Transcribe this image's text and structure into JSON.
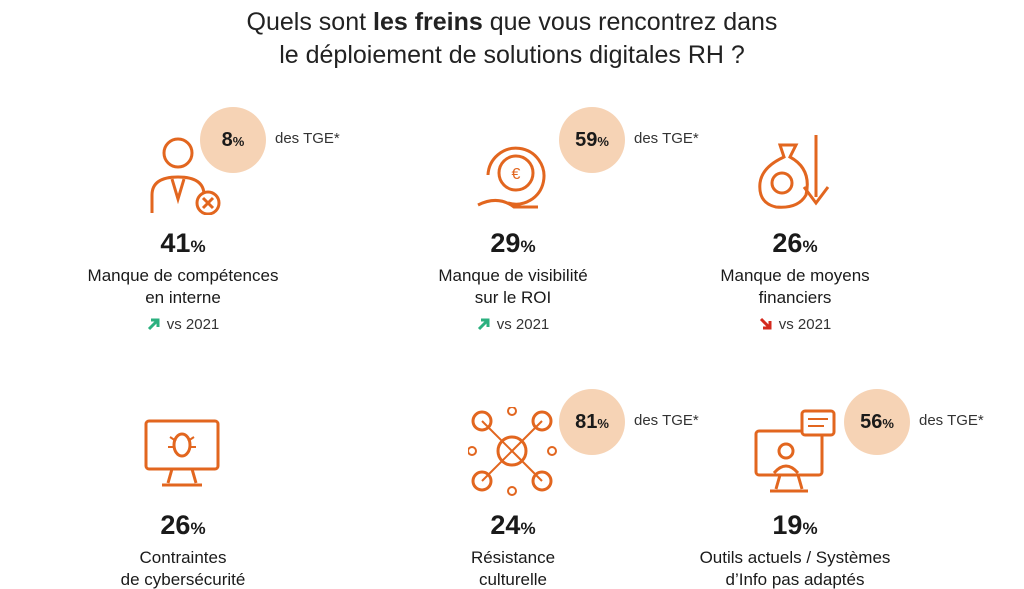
{
  "title": {
    "parts": [
      "Quels sont",
      "les freins",
      "que vous rencontrez dans",
      "le déploiement de solutions digitales RH ?"
    ]
  },
  "unit": "%",
  "items": [
    {
      "value": 41,
      "label": [
        "Manque de compétences",
        "en interne"
      ],
      "trend": {
        "direction": "up",
        "label": "vs 2021"
      },
      "tge": {
        "value": 8,
        "label": "des TGE*"
      }
    },
    {
      "value": 29,
      "label": [
        "Manque de visibilité",
        "sur le ROI"
      ],
      "trend": {
        "direction": "up",
        "label": "vs 2021"
      },
      "tge": {
        "value": 59,
        "label": "des TGE*"
      }
    },
    {
      "value": 26,
      "label": [
        "Manque de moyens",
        "financiers"
      ],
      "trend": {
        "direction": "down",
        "label": "vs 2021"
      }
    },
    {
      "value": 26,
      "label": [
        "Contraintes",
        "de cybersécurité"
      ]
    },
    {
      "value": 24,
      "label": [
        "Résistance",
        "culturelle"
      ],
      "tge": {
        "value": 81,
        "label": "des TGE*"
      }
    },
    {
      "value": 19,
      "label": [
        "Outils actuels / Systèmes",
        "d’Info pas adaptés"
      ],
      "tge": {
        "value": 56,
        "label": "des TGE*"
      }
    }
  ]
}
